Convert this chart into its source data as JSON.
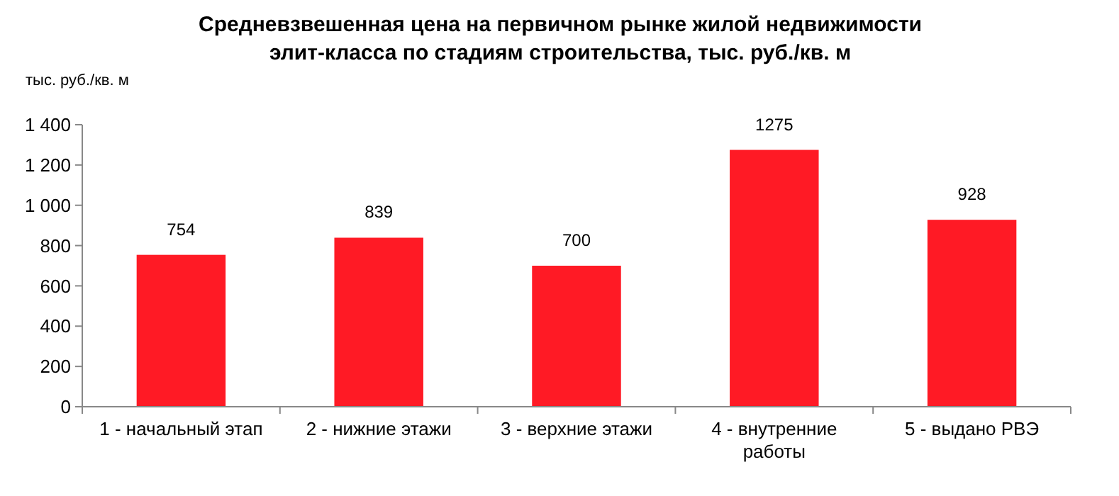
{
  "chart_data": {
    "type": "bar",
    "title": "Средневзвешенная цена на первичном рынке жилой недвижимости\nэлит-класса по стадиям строительства, тыс. руб./кв. м",
    "ylabel": "тыс. руб./кв. м",
    "categories": [
      "1 - начальный этап",
      "2 - нижние этажи",
      "3 - верхние этажи",
      "4 - внутренние работы",
      "5 - выдано РВЭ"
    ],
    "values": [
      754,
      839,
      700,
      1275,
      928
    ],
    "color": "#ff1a25",
    "data_labels": true,
    "grid": false,
    "ylim": [
      0,
      1400
    ],
    "yticks": [
      0,
      200,
      400,
      600,
      800,
      {
        "value": 1000,
        "label": "1 000"
      },
      {
        "value": 1200,
        "label": "1 200"
      },
      {
        "value": 1400,
        "label": "1 400"
      }
    ]
  }
}
